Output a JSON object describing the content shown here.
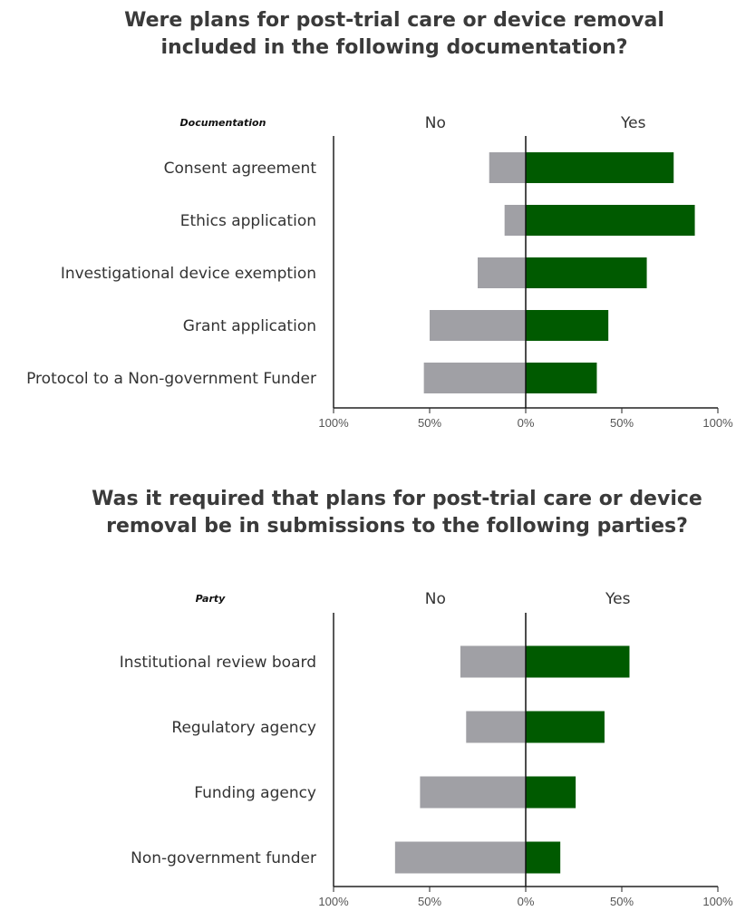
{
  "titles": {
    "chart1": "Were plans for post-trial care or device removal included in the following documentation?",
    "chart2": "Was it required that plans for post-trial care or device removal be in submissions to the following parties?"
  },
  "chart_data": [
    {
      "type": "bar",
      "orientation": "horizontal-diverging",
      "title": "Were plans for post-trial care or device removal included in the following documentation?",
      "category_header": "Documentation",
      "left_header": "No",
      "right_header": "Yes",
      "categories": [
        "Consent agreement",
        "Ethics application",
        "Investigational device exemption",
        "Grant application",
        "Protocol to a Non-government Funder"
      ],
      "series": [
        {
          "name": "No",
          "values": [
            19,
            11,
            25,
            50,
            53
          ]
        },
        {
          "name": "Yes",
          "values": [
            77,
            88,
            63,
            43,
            37
          ]
        }
      ],
      "xlim": [
        -100,
        100
      ],
      "x_ticks": [
        "100%",
        "50%",
        "0%",
        "50%",
        "100%"
      ],
      "colors": {
        "No": "#a0a0a5",
        "Yes": "#005a00"
      }
    },
    {
      "type": "bar",
      "orientation": "horizontal-diverging",
      "title": "Was it required that plans for post-trial care or device removal be in submissions to the following parties?",
      "category_header": "Party",
      "left_header": "No",
      "right_header": "Yes",
      "categories": [
        "Institutional review board",
        "Regulatory agency",
        "Funding agency",
        "Non-government funder"
      ],
      "series": [
        {
          "name": "No",
          "values": [
            34,
            31,
            55,
            68
          ]
        },
        {
          "name": "Yes",
          "values": [
            54,
            41,
            26,
            18
          ]
        }
      ],
      "xlim": [
        -100,
        100
      ],
      "x_ticks": [
        "100%",
        "50%",
        "0%",
        "50%",
        "100%"
      ],
      "colors": {
        "No": "#a0a0a5",
        "Yes": "#005a00"
      }
    }
  ]
}
